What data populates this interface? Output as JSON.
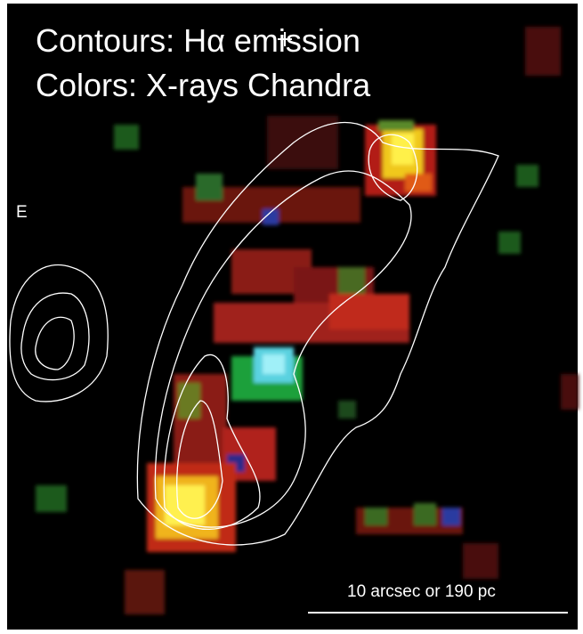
{
  "overlay": {
    "contours_label": "Contours: Hα emission",
    "colors_label": "Colors: X-rays Chandra",
    "direction": "E",
    "scale_bar": "10 arcsec or 190 pc"
  }
}
